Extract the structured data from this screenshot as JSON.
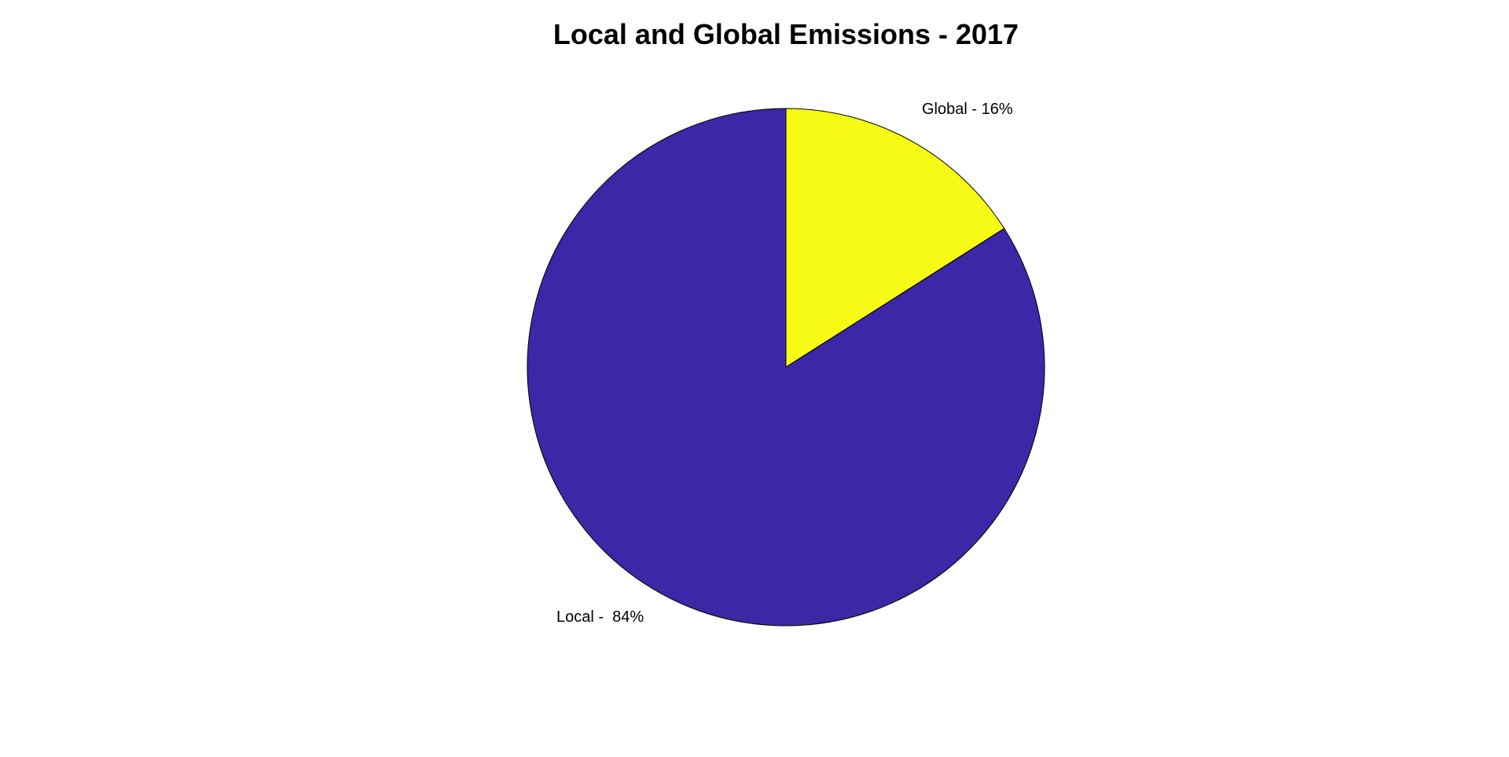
{
  "chart_data": {
    "type": "pie",
    "title": "Local and Global Emissions - 2017",
    "slices": [
      {
        "label": "Global - 16%",
        "value": 16,
        "color": "#F7FA14"
      },
      {
        "label": "Local -  84%",
        "value": 84,
        "color": "#3C27A6"
      }
    ],
    "start": "12 o'clock",
    "direction": "clockwise"
  }
}
